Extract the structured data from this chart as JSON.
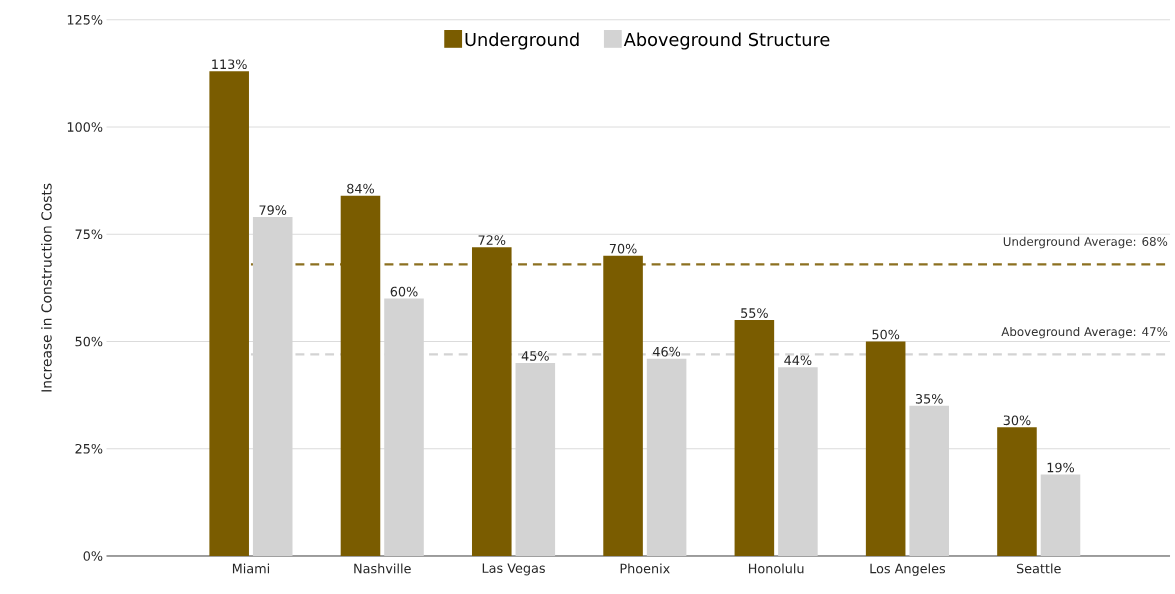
{
  "chart_data": {
    "type": "bar",
    "ylabel": "Increase in Construction Costs",
    "categories": [
      "Miami",
      "Nashville",
      "Las Vegas",
      "Phoenix",
      "Honolulu",
      "Los Angeles",
      "Seattle"
    ],
    "series": [
      {
        "name": "Underground",
        "color": "#7a5c00",
        "values": [
          113,
          84,
          72,
          70,
          55,
          50,
          30
        ],
        "value_labels": [
          "113%",
          "84%",
          "72%",
          "70%",
          "55%",
          "50%",
          "30%"
        ]
      },
      {
        "name": "Aboveground Structure",
        "color": "#d3d3d3",
        "values": [
          79,
          60,
          45,
          46,
          44,
          35,
          19
        ],
        "value_labels": [
          "79%",
          "60%",
          "45%",
          "46%",
          "44%",
          "35%",
          "19%"
        ]
      }
    ],
    "ylim": [
      0,
      125
    ],
    "yticks": [
      {
        "value": 0,
        "label": "0%"
      },
      {
        "value": 25,
        "label": "25%"
      },
      {
        "value": 50,
        "label": "50%"
      },
      {
        "value": 75,
        "label": "75%"
      },
      {
        "value": 100,
        "label": "100%"
      },
      {
        "value": 125,
        "label": "125%"
      }
    ],
    "ref_lines": [
      {
        "axis": "y",
        "value": 68,
        "label": "Underground Average: 68%",
        "color": "#8c7020",
        "line_style": "dashed"
      },
      {
        "axis": "y",
        "value": 47,
        "label": "Aboveground Average: 47%",
        "color": "#d3d3d3",
        "line_style": "dashed"
      }
    ],
    "grid": "y",
    "legend": "top"
  }
}
